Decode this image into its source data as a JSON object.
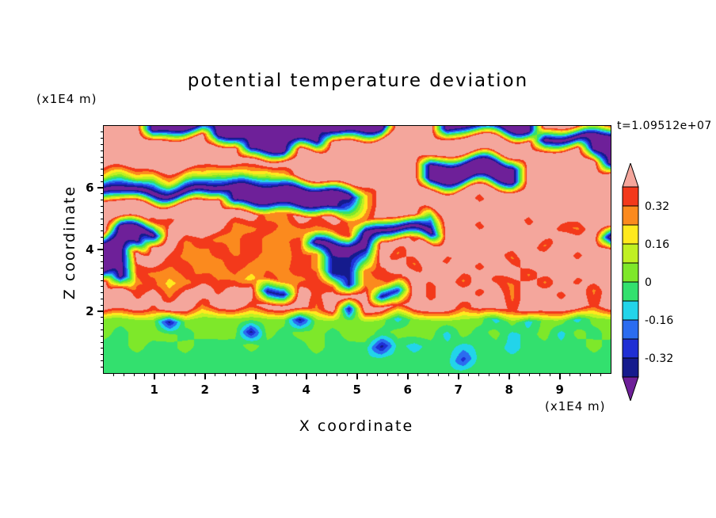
{
  "chart_data": {
    "type": "filled_contour",
    "title": "potential temperature deviation",
    "annotation": "t=1.09512e+07",
    "x_axis": {
      "label": "X coordinate",
      "unit": "(x1E4 m)",
      "min": 0,
      "max": 10,
      "major_ticks": [
        "1",
        "2",
        "3",
        "4",
        "5",
        "6",
        "7",
        "8",
        "9"
      ],
      "minor_step": 0.2
    },
    "z_axis": {
      "label": "Z coordinate",
      "unit": "(x1E4 m)",
      "min": 0,
      "max": 8,
      "major_ticks": [
        "2",
        "4",
        "6"
      ],
      "minor_step": 0.2
    },
    "levels": [
      -0.4,
      -0.32,
      -0.24,
      -0.16,
      -0.08,
      0,
      0.08,
      0.16,
      0.24,
      0.32,
      0.4
    ],
    "palette": {
      "below": "#6e2099",
      "boxes": [
        "#151b8d",
        "#1f2fd4",
        "#2b6cf0",
        "#22d4ea",
        "#33e06e",
        "#7ee82a",
        "#c0f022",
        "#ffe91e",
        "#fb8a1e",
        "#f3391b"
      ],
      "above": "#f4a69c"
    },
    "colorbar": {
      "labels": [
        "0.32",
        "0.16",
        "0",
        "-0.16",
        "-0.32"
      ],
      "label_level_indices": [
        9,
        7,
        5,
        3,
        1
      ]
    },
    "grid": {
      "nx": 32,
      "nz": 20,
      "x_range": [
        0,
        10
      ],
      "z_range": [
        0,
        8
      ],
      "order": "rows from top (z=8) to bottom (z=0)",
      "values": [
        [
          0.5,
          0.5,
          0.5,
          -0.5,
          -0.5,
          -0.5,
          -0.5,
          -0.5,
          -0.5,
          -0.5,
          -0.5,
          -0.5,
          -0.5,
          -0.5,
          -0.5,
          -0.5,
          -0.5,
          -0.5,
          0.5,
          0.5,
          0.5,
          -0.5,
          -0.5,
          -0.5,
          -0.5,
          -0.5,
          -0.5,
          0.5,
          0.5,
          0.5,
          0.5,
          0.5
        ],
        [
          0.5,
          0.5,
          0.5,
          0.5,
          0.5,
          0.5,
          0.5,
          -0.5,
          -0.5,
          -0.5,
          -0.5,
          -0.5,
          -0.5,
          -0.5,
          0.5,
          0.5,
          0.5,
          0.5,
          0.5,
          0.5,
          0.5,
          0.5,
          0.5,
          0.5,
          0.5,
          0.5,
          0.5,
          -0.5,
          -0.5,
          -0.5,
          -0.5,
          -0.5
        ],
        [
          0.5,
          0.5,
          0.5,
          0.5,
          0.5,
          0.5,
          0.5,
          0.5,
          0.5,
          -0.5,
          -0.5,
          -0.5,
          0.5,
          0.5,
          0.5,
          0.5,
          0.5,
          0.5,
          0.5,
          0.5,
          0.5,
          0.5,
          0.5,
          0.5,
          0.5,
          0.5,
          0.5,
          0.5,
          0.5,
          0.5,
          -0.5,
          -0.5
        ],
        [
          0.5,
          0.5,
          0.5,
          0.5,
          0.5,
          0.5,
          0.5,
          0.5,
          0.5,
          0.5,
          0.5,
          0.5,
          0.5,
          0.5,
          0.5,
          0.5,
          0.5,
          0.5,
          0.5,
          0.5,
          -0.5,
          -0.5,
          -0.5,
          -0.5,
          -0.5,
          -0.5,
          0.5,
          0.5,
          0.5,
          0.5,
          0.5,
          -0.5
        ],
        [
          0.2,
          0.04,
          0.2,
          0.04,
          0.2,
          0.04,
          0.2,
          0.04,
          0.12,
          0.2,
          0.04,
          0.2,
          0.5,
          0.5,
          0.5,
          0.5,
          0.5,
          0.5,
          0.5,
          0.5,
          -0.5,
          -0.5,
          -0.5,
          -0.5,
          -0.5,
          -0.5,
          0.5,
          0.5,
          0.5,
          0.5,
          0.5,
          0.5
        ],
        [
          -0.5,
          -0.5,
          -0.5,
          -0.5,
          -0.5,
          -0.5,
          -0.5,
          -0.5,
          -0.5,
          -0.5,
          -0.5,
          -0.5,
          -0.5,
          -0.5,
          -0.5,
          -0.5,
          0.2,
          0.5,
          0.5,
          0.5,
          0.5,
          0.5,
          0.5,
          0.5,
          0.5,
          0.5,
          0.5,
          0.5,
          0.5,
          0.5,
          0.5,
          0.5
        ],
        [
          0.5,
          0.5,
          0.5,
          0.5,
          0.5,
          0.5,
          0.5,
          0.5,
          -0.5,
          -0.5,
          -0.5,
          -0.5,
          -0.5,
          -0.5,
          -0.5,
          -0.12,
          0.2,
          0.5,
          0.5,
          0.5,
          0.5,
          0.5,
          0.5,
          0.36,
          0.5,
          0.5,
          0.5,
          0.5,
          0.5,
          0.5,
          0.5,
          0.5
        ],
        [
          0.5,
          0.5,
          0.5,
          0.36,
          0.36,
          0.5,
          0.5,
          0.5,
          0.5,
          0.5,
          0.28,
          0.28,
          0.5,
          0.36,
          0.5,
          0.3,
          0.3,
          0.5,
          0.5,
          0.5,
          -0.12,
          0.5,
          0.5,
          0.5,
          0.5,
          0.5,
          0.36,
          0.5,
          0.5,
          0.5,
          0.5,
          0.5
        ],
        [
          0.5,
          -0.5,
          -0.5,
          -0.5,
          0.5,
          0.5,
          0.5,
          0.5,
          0.3,
          0.3,
          0.36,
          0.3,
          0.28,
          0.3,
          0.3,
          0.36,
          -0.5,
          -0.5,
          -0.5,
          -0.5,
          -0.5,
          0.5,
          0.5,
          0.36,
          0.5,
          0.5,
          0.5,
          0.5,
          0.36,
          0.3,
          0.5,
          0.5
        ],
        [
          -0.5,
          -0.5,
          -0.5,
          0.5,
          0.5,
          0.3,
          0.36,
          0.3,
          0.3,
          0.36,
          0.3,
          0.3,
          0.36,
          -0.5,
          -0.5,
          -0.5,
          -0.5,
          0.5,
          0.5,
          0.36,
          0.5,
          0.5,
          0.5,
          0.5,
          0.5,
          0.5,
          0.5,
          0.3,
          0.5,
          0.5,
          0.5,
          -0.5
        ],
        [
          -0.5,
          -0.5,
          0.5,
          0.5,
          0.36,
          0.3,
          0.28,
          0.36,
          0.3,
          0.36,
          0.3,
          0.28,
          0.36,
          0.3,
          -0.36,
          -0.36,
          -0.12,
          0.5,
          0.3,
          0.5,
          0.5,
          0.36,
          0.5,
          0.5,
          0.5,
          0.3,
          0.5,
          0.5,
          0.5,
          0.36,
          0.5,
          0.5
        ],
        [
          -0.5,
          -0.5,
          0.36,
          0.3,
          0.3,
          0.36,
          0.28,
          0.3,
          0.36,
          0.3,
          0.28,
          0.3,
          0.36,
          0.3,
          -0.36,
          -0.36,
          0.3,
          0.36,
          0.5,
          0.3,
          0.5,
          0.5,
          0.5,
          0.36,
          0.5,
          0.5,
          0.3,
          0.5,
          0.5,
          0.5,
          0.5,
          0.5
        ],
        [
          0.5,
          -0.5,
          0.3,
          0.36,
          0.2,
          0.3,
          0.36,
          0.3,
          0.3,
          0.2,
          0.36,
          0.3,
          0.3,
          0.36,
          0.3,
          -0.36,
          0.3,
          0.3,
          0.36,
          0.5,
          0.36,
          0.5,
          0.3,
          0.5,
          0.36,
          0.3,
          0.5,
          0.3,
          0.5,
          0.36,
          0.5,
          0.5
        ],
        [
          0.5,
          0.5,
          0.36,
          0.5,
          0.3,
          0.5,
          0.5,
          0.36,
          0.5,
          0.5,
          -0.36,
          -0.36,
          0.5,
          0.36,
          0.5,
          0.5,
          0.5,
          -0.36,
          -0.28,
          0.5,
          0.36,
          0.5,
          0.5,
          0.36,
          0.5,
          0.3,
          0.5,
          0.5,
          0.36,
          0.5,
          0.3,
          0.5
        ],
        [
          0.5,
          0.5,
          0.5,
          0.36,
          0.5,
          0.5,
          0.3,
          0.5,
          0.5,
          0.36,
          0.5,
          0.5,
          0.5,
          0.3,
          0.5,
          -0.36,
          0.5,
          0.5,
          0.36,
          0.5,
          0.5,
          0.5,
          0.3,
          0.5,
          0.5,
          0.36,
          0.5,
          0.5,
          0.5,
          0.5,
          0.36,
          0.5
        ],
        [
          0.04,
          0.04,
          0.04,
          0.04,
          -0.36,
          0.04,
          0.04,
          0.04,
          0.04,
          0.04,
          0.04,
          0.04,
          -0.36,
          0.04,
          0.04,
          0.04,
          0.04,
          0.04,
          -0.12,
          0.04,
          0.04,
          0.04,
          0.04,
          0.04,
          -0.12,
          0.04,
          -0.12,
          0.04,
          0.04,
          -0.12,
          0.04,
          0.04
        ],
        [
          0.04,
          -0.04,
          0.04,
          0.04,
          0.04,
          -0.04,
          0.04,
          0.04,
          0.04,
          -0.36,
          0.04,
          -0.04,
          0.04,
          0.04,
          -0.04,
          0.04,
          0.04,
          -0.04,
          0.04,
          0.04,
          0.04,
          -0.12,
          0.04,
          -0.04,
          0.04,
          -0.12,
          -0.04,
          0.04,
          -0.12,
          0.04,
          -0.04,
          0.04
        ],
        [
          -0.04,
          -0.04,
          0.04,
          -0.04,
          -0.04,
          0.04,
          -0.04,
          -0.04,
          -0.04,
          0.04,
          -0.04,
          -0.04,
          -0.04,
          0.04,
          -0.04,
          -0.04,
          -0.04,
          -0.36,
          -0.04,
          -0.12,
          -0.04,
          -0.04,
          -0.12,
          -0.04,
          -0.04,
          -0.12,
          -0.04,
          -0.04,
          -0.04,
          -0.04,
          0.04,
          -0.04
        ],
        [
          -0.04,
          -0.04,
          -0.04,
          -0.04,
          -0.04,
          -0.04,
          -0.04,
          -0.04,
          -0.04,
          -0.04,
          -0.04,
          -0.04,
          -0.04,
          -0.04,
          -0.04,
          -0.04,
          -0.04,
          -0.04,
          -0.04,
          -0.04,
          -0.04,
          -0.04,
          -0.28,
          -0.04,
          -0.04,
          -0.04,
          -0.04,
          -0.04,
          -0.04,
          -0.04,
          -0.04,
          -0.04
        ],
        [
          -0.04,
          -0.04,
          -0.04,
          -0.04,
          -0.04,
          -0.04,
          -0.04,
          -0.04,
          -0.04,
          -0.04,
          -0.04,
          -0.04,
          -0.04,
          -0.04,
          -0.04,
          -0.04,
          -0.04,
          -0.04,
          -0.04,
          -0.04,
          -0.04,
          -0.04,
          -0.04,
          -0.04,
          -0.04,
          -0.04,
          -0.04,
          -0.04,
          -0.04,
          -0.04,
          -0.04,
          -0.04
        ]
      ]
    }
  }
}
